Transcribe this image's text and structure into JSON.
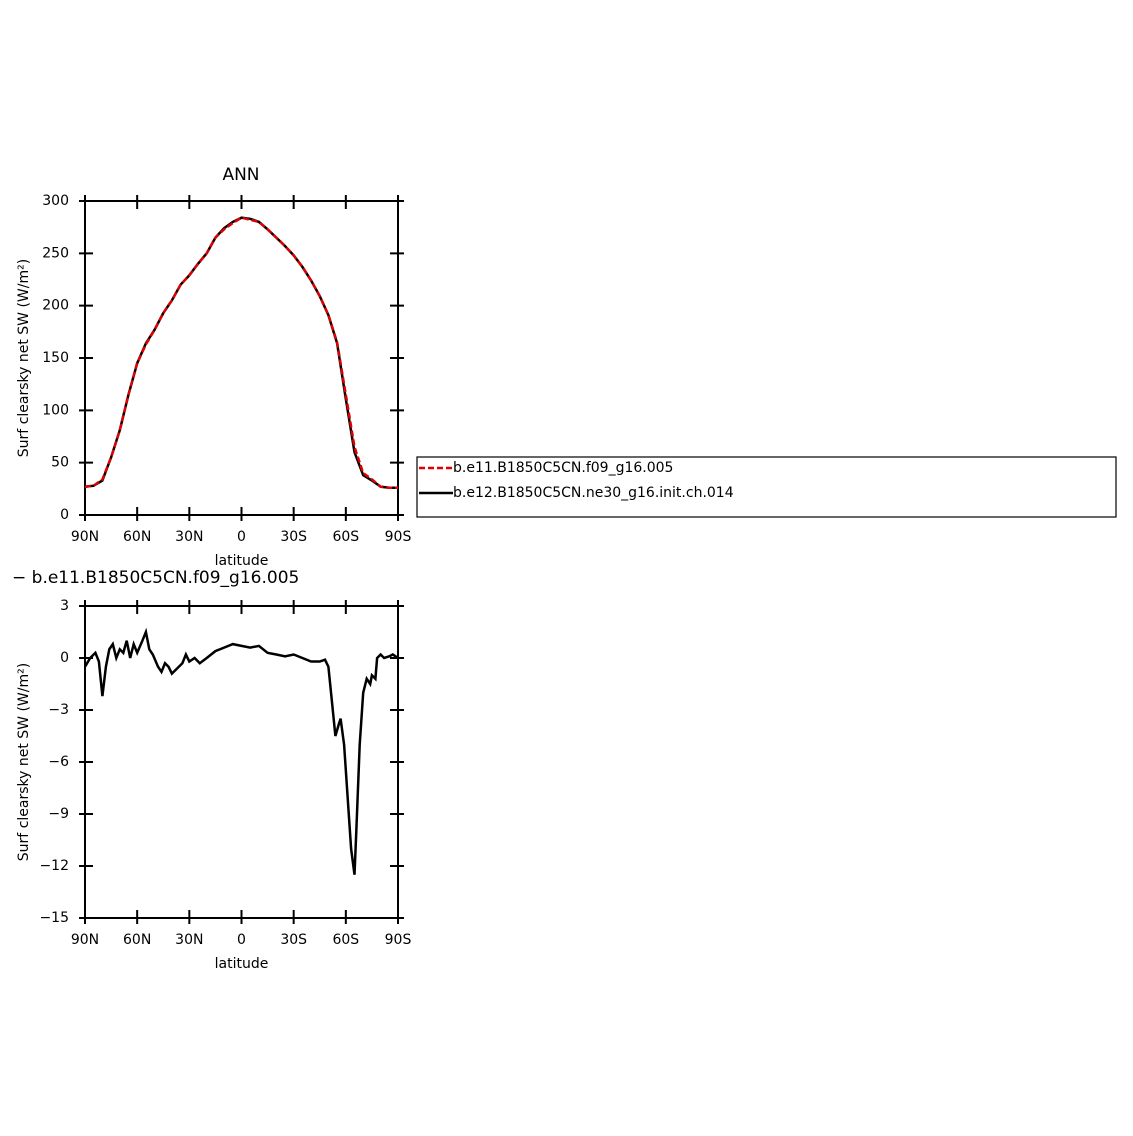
{
  "chart_data": [
    {
      "type": "line",
      "title": "ANN",
      "xlabel": "latitude",
      "ylabel": "Surf clearsky net SW (W/m²)",
      "x": [
        90,
        85,
        80,
        75,
        70,
        65,
        60,
        55,
        50,
        45,
        40,
        35,
        30,
        25,
        20,
        15,
        10,
        5,
        0,
        -5,
        -10,
        -15,
        -20,
        -25,
        -30,
        -35,
        -40,
        -45,
        -50,
        -55,
        -60,
        -65,
        -70,
        -75,
        -80,
        -85,
        -90
      ],
      "series": [
        {
          "name": "b.e11.B1850C5CN.f09_g16.005",
          "color": "#e00000",
          "linestyle": "dashed",
          "values": [
            27,
            28,
            34,
            55,
            81,
            115,
            145,
            163,
            177,
            193,
            205,
            220,
            229,
            240,
            250,
            265,
            273,
            279,
            284,
            282,
            280,
            273,
            265,
            257,
            248,
            237,
            224,
            209,
            191,
            165,
            115,
            65,
            40,
            34,
            27,
            26,
            26
          ]
        },
        {
          "name": "b.e12.B1850C5CN.ne30_g16.init.ch.014",
          "color": "#000000",
          "linestyle": "solid",
          "values": [
            27,
            28,
            33,
            55,
            81,
            115,
            145,
            164,
            177,
            193,
            205,
            220,
            229,
            240,
            250,
            265,
            274,
            280,
            284,
            283,
            280,
            273,
            265,
            257,
            248,
            237,
            224,
            209,
            191,
            164,
            111,
            60,
            38,
            33,
            27,
            26,
            26
          ]
        }
      ],
      "xlim": [
        90,
        -90
      ],
      "xticks": [
        {
          "value": 90,
          "label": "90N"
        },
        {
          "value": 60,
          "label": "60N"
        },
        {
          "value": 30,
          "label": "30N"
        },
        0,
        {
          "value": -30,
          "label": "30S"
        },
        {
          "value": -60,
          "label": "60S"
        },
        {
          "value": -90,
          "label": "90S"
        }
      ],
      "ylim": [
        0,
        300
      ],
      "yticks": [
        0,
        50,
        100,
        150,
        200,
        250,
        300
      ],
      "legend": "right"
    },
    {
      "type": "line",
      "title": "− b.e11.B1850C5CN.f09_g16.005",
      "xlabel": "latitude",
      "ylabel": "Surf clearsky net SW (W/m²)",
      "x": [
        90,
        87,
        84,
        82,
        80,
        78,
        76,
        74,
        72,
        70,
        68,
        66,
        64,
        62,
        60,
        57,
        55,
        53,
        51,
        48,
        46,
        44,
        42,
        40,
        37,
        34,
        32,
        30,
        27,
        24,
        20,
        15,
        10,
        5,
        0,
        -5,
        -10,
        -15,
        -20,
        -25,
        -30,
        -35,
        -40,
        -45,
        -48,
        -50,
        -52,
        -54,
        -56,
        -57,
        -59,
        -61,
        -63,
        -65,
        -66,
        -68,
        -70,
        -72,
        -74,
        -75,
        -77,
        -78,
        -80,
        -82,
        -85,
        -87,
        -90
      ],
      "values": [
        -0.5,
        0,
        0.3,
        -0.2,
        -2.2,
        -0.5,
        0.5,
        0.8,
        0,
        0.5,
        0.3,
        1.0,
        0,
        0.8,
        0.3,
        1.0,
        1.5,
        0.5,
        0.2,
        -0.5,
        -0.8,
        -0.3,
        -0.5,
        -0.9,
        -0.6,
        -0.3,
        0.2,
        -0.2,
        0,
        -0.3,
        0,
        0.4,
        0.6,
        0.8,
        0.7,
        0.6,
        0.7,
        0.3,
        0.2,
        0.1,
        0.2,
        0,
        -0.2,
        -0.2,
        -0.1,
        -0.5,
        -2.5,
        -4.5,
        -3.8,
        -3.5,
        -5,
        -8,
        -11,
        -12.5,
        -10,
        -5,
        -2,
        -1.2,
        -1.5,
        -1,
        -1.2,
        0,
        0.2,
        0,
        0.1,
        0.2,
        0
      ],
      "color": "#000000",
      "xlim": [
        90,
        -90
      ],
      "xticks": [
        {
          "value": 90,
          "label": "90N"
        },
        {
          "value": 60,
          "label": "60N"
        },
        {
          "value": 30,
          "label": "30N"
        },
        0,
        {
          "value": -30,
          "label": "30S"
        },
        {
          "value": -60,
          "label": "60S"
        },
        {
          "value": -90,
          "label": "90S"
        }
      ],
      "ylim": [
        -15,
        3
      ],
      "yticks": [
        {
          "value": -15,
          "label": "−15"
        },
        {
          "value": -12,
          "label": "−12"
        },
        {
          "value": -9,
          "label": "−9"
        },
        {
          "value": -6,
          "label": "−6"
        },
        {
          "value": -3,
          "label": "−3"
        },
        0,
        3
      ]
    }
  ]
}
